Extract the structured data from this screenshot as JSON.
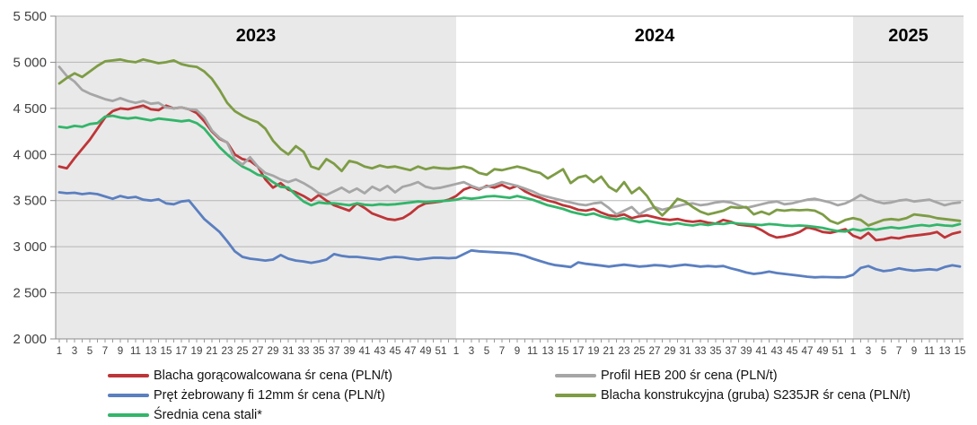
{
  "chart_data": {
    "type": "line",
    "title": "",
    "y_axis": {
      "min": 2000,
      "max": 5500,
      "step": 500,
      "tick_labels": [
        "5 500",
        "5 000",
        "4 500",
        "4 000",
        "3 500",
        "3 000",
        "2 500",
        "2 000"
      ]
    },
    "x_axis": {
      "unit": "week-of-year",
      "years": [
        {
          "label": "2023",
          "weeks": 52,
          "shaded": true,
          "tick_labels": [
            "1",
            "3",
            "5",
            "7",
            "9",
            "11",
            "13",
            "15",
            "17",
            "19",
            "21",
            "23",
            "25",
            "27",
            "29",
            "31",
            "33",
            "35",
            "37",
            "39",
            "41",
            "43",
            "45",
            "47",
            "49",
            "51"
          ]
        },
        {
          "label": "2024",
          "weeks": 52,
          "shaded": false,
          "tick_labels": [
            "1",
            "3",
            "5",
            "7",
            "9",
            "11",
            "13",
            "15",
            "17",
            "19",
            "21",
            "23",
            "25",
            "27",
            "29",
            "31",
            "33",
            "35",
            "37",
            "39",
            "41",
            "43",
            "45",
            "47",
            "49",
            "51"
          ]
        },
        {
          "label": "2025",
          "weeks": 15,
          "shaded": true,
          "tick_labels": [
            "1",
            "3",
            "5",
            "7",
            "9",
            "11",
            "13",
            "15"
          ]
        }
      ]
    },
    "grid": true,
    "legend_position": "bottom",
    "series": [
      {
        "id": "blacha-goracowalcowana",
        "name": "Blacha gorącowalcowana śr cena (PLN/t)",
        "color": "#bE3538",
        "values": [
          3870,
          3850,
          3960,
          4060,
          4160,
          4280,
          4400,
          4470,
          4500,
          4490,
          4510,
          4530,
          4490,
          4480,
          4530,
          4500,
          4510,
          4490,
          4450,
          4360,
          4250,
          4170,
          4130,
          4000,
          3950,
          3930,
          3870,
          3730,
          3640,
          3690,
          3620,
          3590,
          3550,
          3500,
          3560,
          3500,
          3450,
          3420,
          3390,
          3470,
          3420,
          3360,
          3330,
          3300,
          3290,
          3310,
          3360,
          3430,
          3470,
          3480,
          3490,
          3510,
          3550,
          3620,
          3650,
          3620,
          3660,
          3640,
          3670,
          3630,
          3660,
          3600,
          3560,
          3530,
          3500,
          3480,
          3450,
          3430,
          3400,
          3390,
          3410,
          3370,
          3340,
          3330,
          3350,
          3310,
          3330,
          3340,
          3320,
          3300,
          3290,
          3300,
          3280,
          3270,
          3280,
          3260,
          3250,
          3290,
          3270,
          3240,
          3230,
          3220,
          3180,
          3130,
          3100,
          3110,
          3130,
          3160,
          3210,
          3190,
          3160,
          3150,
          3170,
          3190,
          3120,
          3090,
          3150,
          3070,
          3080,
          3100,
          3090,
          3110,
          3120,
          3130,
          3140,
          3160,
          3100,
          3140,
          3160
        ]
      },
      {
        "id": "pret-zebrowany",
        "name": "Pręt żebrowany fi 12mm  śr cena (PLN/t)",
        "color": "#5b7fc0",
        "values": [
          3590,
          3580,
          3585,
          3570,
          3580,
          3570,
          3545,
          3520,
          3550,
          3530,
          3540,
          3510,
          3500,
          3515,
          3470,
          3460,
          3490,
          3500,
          3400,
          3300,
          3230,
          3160,
          3060,
          2950,
          2890,
          2870,
          2860,
          2850,
          2860,
          2910,
          2870,
          2850,
          2840,
          2825,
          2840,
          2860,
          2920,
          2900,
          2890,
          2890,
          2880,
          2870,
          2860,
          2880,
          2890,
          2885,
          2870,
          2860,
          2870,
          2880,
          2880,
          2875,
          2880,
          2920,
          2960,
          2950,
          2945,
          2940,
          2935,
          2930,
          2920,
          2900,
          2870,
          2845,
          2820,
          2800,
          2790,
          2780,
          2830,
          2815,
          2805,
          2795,
          2785,
          2795,
          2805,
          2795,
          2785,
          2790,
          2800,
          2795,
          2785,
          2795,
          2805,
          2795,
          2785,
          2790,
          2785,
          2790,
          2765,
          2745,
          2720,
          2705,
          2715,
          2730,
          2715,
          2705,
          2695,
          2685,
          2675,
          2668,
          2672,
          2670,
          2668,
          2670,
          2695,
          2770,
          2790,
          2755,
          2735,
          2745,
          2765,
          2750,
          2740,
          2748,
          2755,
          2748,
          2780,
          2798,
          2785
        ]
      },
      {
        "id": "srednia-cena-stali",
        "name": "Średnia cena stali*",
        "color": "#33b56a",
        "values": [
          4300,
          4290,
          4310,
          4300,
          4330,
          4340,
          4410,
          4420,
          4400,
          4390,
          4400,
          4385,
          4370,
          4390,
          4380,
          4370,
          4360,
          4370,
          4340,
          4280,
          4180,
          4080,
          4000,
          3930,
          3870,
          3830,
          3780,
          3760,
          3700,
          3650,
          3640,
          3560,
          3490,
          3450,
          3480,
          3470,
          3470,
          3460,
          3450,
          3470,
          3455,
          3450,
          3460,
          3455,
          3460,
          3470,
          3480,
          3490,
          3485,
          3490,
          3495,
          3500,
          3510,
          3530,
          3520,
          3530,
          3545,
          3550,
          3540,
          3530,
          3550,
          3530,
          3510,
          3480,
          3450,
          3430,
          3410,
          3380,
          3360,
          3345,
          3360,
          3330,
          3310,
          3295,
          3310,
          3285,
          3265,
          3280,
          3265,
          3250,
          3240,
          3255,
          3240,
          3230,
          3245,
          3235,
          3250,
          3245,
          3260,
          3250,
          3245,
          3240,
          3235,
          3245,
          3240,
          3230,
          3225,
          3230,
          3225,
          3215,
          3205,
          3185,
          3170,
          3165,
          3190,
          3175,
          3195,
          3185,
          3200,
          3210,
          3200,
          3210,
          3225,
          3235,
          3225,
          3240,
          3230,
          3225,
          3245
        ]
      },
      {
        "id": "profil-heb-200",
        "name": "Profil HEB 200 śr cena (PLN/t)",
        "color": "#a6a6a6",
        "values": [
          4950,
          4850,
          4790,
          4700,
          4660,
          4630,
          4600,
          4580,
          4610,
          4580,
          4560,
          4580,
          4550,
          4560,
          4510,
          4500,
          4510,
          4490,
          4480,
          4400,
          4260,
          4180,
          4130,
          3950,
          3890,
          3970,
          3870,
          3800,
          3770,
          3730,
          3700,
          3730,
          3690,
          3640,
          3580,
          3560,
          3600,
          3640,
          3590,
          3630,
          3580,
          3650,
          3610,
          3660,
          3590,
          3650,
          3670,
          3700,
          3650,
          3630,
          3640,
          3660,
          3680,
          3700,
          3660,
          3630,
          3650,
          3670,
          3700,
          3680,
          3660,
          3630,
          3600,
          3560,
          3540,
          3520,
          3500,
          3480,
          3460,
          3450,
          3470,
          3480,
          3420,
          3350,
          3390,
          3430,
          3350,
          3400,
          3430,
          3400,
          3420,
          3440,
          3460,
          3470,
          3450,
          3460,
          3480,
          3490,
          3480,
          3450,
          3420,
          3440,
          3460,
          3480,
          3490,
          3460,
          3470,
          3490,
          3510,
          3520,
          3500,
          3480,
          3450,
          3470,
          3510,
          3560,
          3520,
          3490,
          3470,
          3480,
          3500,
          3510,
          3490,
          3500,
          3510,
          3480,
          3450,
          3470,
          3480
        ]
      },
      {
        "id": "blacha-konstrukcyjna",
        "name": "Blacha konstrukcyjna (gruba) S235JR śr cena (PLN/t)",
        "color": "#7d9c45",
        "values": [
          4770,
          4830,
          4880,
          4840,
          4900,
          4960,
          5010,
          5020,
          5030,
          5010,
          5000,
          5030,
          5010,
          4990,
          5000,
          5020,
          4980,
          4960,
          4950,
          4900,
          4820,
          4700,
          4560,
          4470,
          4420,
          4380,
          4350,
          4280,
          4150,
          4060,
          4000,
          4090,
          4030,
          3870,
          3840,
          3950,
          3900,
          3820,
          3930,
          3910,
          3870,
          3850,
          3880,
          3860,
          3870,
          3850,
          3830,
          3870,
          3840,
          3860,
          3850,
          3845,
          3855,
          3870,
          3850,
          3800,
          3780,
          3840,
          3830,
          3850,
          3870,
          3850,
          3820,
          3800,
          3740,
          3790,
          3840,
          3690,
          3750,
          3770,
          3700,
          3760,
          3650,
          3600,
          3700,
          3580,
          3640,
          3550,
          3420,
          3340,
          3420,
          3520,
          3490,
          3430,
          3380,
          3350,
          3370,
          3390,
          3430,
          3420,
          3430,
          3350,
          3380,
          3350,
          3400,
          3390,
          3400,
          3395,
          3400,
          3390,
          3350,
          3280,
          3250,
          3290,
          3310,
          3290,
          3230,
          3260,
          3290,
          3300,
          3290,
          3310,
          3350,
          3340,
          3330,
          3310,
          3300,
          3290,
          3280
        ]
      }
    ],
    "legend_columns": [
      [
        0,
        1,
        2
      ],
      [
        3,
        4
      ]
    ]
  },
  "style_colors": {
    "year_band_fill": "#e9e9e9",
    "gridline": "#b5b5b5",
    "axis_line": "#8c8c8c",
    "tick_mark": "#9a9a9a",
    "axis_text": "#404040",
    "year_label_text": "#000000"
  }
}
